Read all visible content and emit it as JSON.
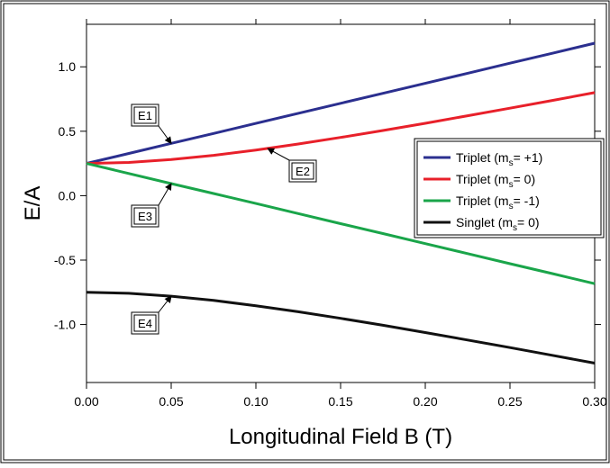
{
  "chart_data": {
    "type": "line",
    "xlabel": "Longitudinal Field B (T)",
    "ylabel": "E/A",
    "xlim": [
      0.0,
      0.3
    ],
    "ylim": [
      -1.45,
      1.33
    ],
    "x_ticks": [
      "0.00",
      "0.05",
      "0.10",
      "0.15",
      "0.20",
      "0.25",
      "0.30"
    ],
    "y_ticks": [
      "1.0",
      "0.5",
      "0.0",
      "-0.5",
      "-1.0"
    ],
    "grid": false,
    "legend_position": "right",
    "x": [
      0.0,
      0.025,
      0.05,
      0.075,
      0.1,
      0.125,
      0.15,
      0.175,
      0.2,
      0.225,
      0.25,
      0.275,
      0.3
    ],
    "series": [
      {
        "name": "Triplet (ms= +1)",
        "legend_main": "Triplet (m",
        "legend_sub": "s",
        "legend_tail": "= +1)",
        "color": "#2b2f8f",
        "values": [
          0.25,
          0.328,
          0.406,
          0.483,
          0.561,
          0.639,
          0.717,
          0.794,
          0.872,
          0.95,
          1.028,
          1.105,
          1.183
        ]
      },
      {
        "name": "Triplet (ms= 0)",
        "legend_main": "Triplet (m",
        "legend_sub": "s",
        "legend_tail": "= 0)",
        "color": "#e8202a",
        "values": [
          0.25,
          0.258,
          0.28,
          0.313,
          0.354,
          0.401,
          0.452,
          0.506,
          0.562,
          0.62,
          0.679,
          0.739,
          0.8
        ]
      },
      {
        "name": "Triplet (ms= -1)",
        "legend_main": "Triplet (m",
        "legend_sub": "s",
        "legend_tail": "= -1)",
        "color": "#1aa54a",
        "values": [
          0.25,
          0.172,
          0.094,
          0.017,
          -0.061,
          -0.139,
          -0.217,
          -0.294,
          -0.372,
          -0.45,
          -0.528,
          -0.605,
          -0.683
        ]
      },
      {
        "name": "Singlet (ms= 0)",
        "legend_main": "Singlet (m",
        "legend_sub": "s",
        "legend_tail": "= 0)",
        "color": "#111111",
        "values": [
          -0.75,
          -0.758,
          -0.78,
          -0.813,
          -0.854,
          -0.901,
          -0.952,
          -1.006,
          -1.062,
          -1.12,
          -1.179,
          -1.239,
          -1.3
        ]
      }
    ],
    "annotations": [
      {
        "text": "E1",
        "target_x": 0.05,
        "target_y": 0.406
      },
      {
        "text": "E2",
        "target_x": 0.107,
        "target_y": 0.366
      },
      {
        "text": "E3",
        "target_x": 0.05,
        "target_y": 0.094
      },
      {
        "text": "E4",
        "target_x": 0.05,
        "target_y": -0.78
      }
    ]
  }
}
